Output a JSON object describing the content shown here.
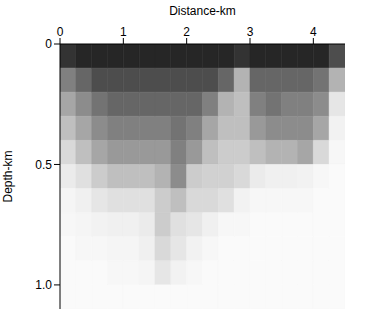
{
  "chart_data": {
    "type": "heatmap",
    "x_label": "Distance-km",
    "y_label": "Depth-km",
    "xlim": [
      0,
      4.5
    ],
    "ylim": [
      0,
      1.1
    ],
    "xticks": [
      0,
      1,
      2,
      3,
      4
    ],
    "yticks": [
      0,
      0.5,
      {
        "value": 1,
        "label": "1.0"
      }
    ],
    "grid": false,
    "x_bins": [
      0,
      0.25,
      0.5,
      0.75,
      1,
      1.25,
      1.5,
      1.75,
      2,
      2.25,
      2.5,
      2.75,
      3,
      3.25,
      3.5,
      3.75,
      4,
      4.25,
      4.5
    ],
    "y_bins": [
      0,
      0.1,
      0.2,
      0.3,
      0.4,
      0.5,
      0.6,
      0.7,
      0.8,
      0.9,
      1,
      1.1
    ],
    "cells": [
      [
        0.8,
        0.85,
        0.85,
        0.85,
        0.85,
        0.85,
        0.85,
        0.85,
        0.85,
        0.85,
        0.85,
        0.8,
        0.85,
        0.85,
        0.85,
        0.85,
        0.85,
        0.7
      ],
      [
        0.5,
        0.6,
        0.7,
        0.7,
        0.7,
        0.7,
        0.7,
        0.7,
        0.7,
        0.7,
        0.6,
        0.3,
        0.6,
        0.6,
        0.6,
        0.6,
        0.55,
        0.3
      ],
      [
        0.35,
        0.45,
        0.55,
        0.6,
        0.6,
        0.6,
        0.6,
        0.6,
        0.6,
        0.5,
        0.3,
        0.25,
        0.5,
        0.55,
        0.5,
        0.5,
        0.45,
        0.1
      ],
      [
        0.25,
        0.35,
        0.45,
        0.5,
        0.5,
        0.5,
        0.5,
        0.55,
        0.5,
        0.35,
        0.25,
        0.25,
        0.4,
        0.45,
        0.45,
        0.45,
        0.35,
        0.05
      ],
      [
        0.15,
        0.25,
        0.35,
        0.4,
        0.4,
        0.4,
        0.4,
        0.5,
        0.4,
        0.25,
        0.2,
        0.2,
        0.25,
        0.3,
        0.3,
        0.35,
        0.15,
        0.03
      ],
      [
        0.08,
        0.12,
        0.2,
        0.25,
        0.25,
        0.25,
        0.3,
        0.45,
        0.2,
        0.18,
        0.18,
        0.15,
        0.08,
        0.06,
        0.06,
        0.05,
        0.03,
        0.02
      ],
      [
        0.04,
        0.06,
        0.1,
        0.12,
        0.12,
        0.12,
        0.2,
        0.25,
        0.15,
        0.15,
        0.12,
        0.05,
        0.03,
        0.03,
        0.03,
        0.03,
        0.02,
        0.02
      ],
      [
        0.03,
        0.04,
        0.05,
        0.06,
        0.06,
        0.08,
        0.2,
        0.12,
        0.1,
        0.06,
        0.03,
        0.03,
        0.02,
        0.02,
        0.02,
        0.02,
        0.02,
        0.02
      ],
      [
        0.02,
        0.03,
        0.03,
        0.04,
        0.04,
        0.06,
        0.15,
        0.1,
        0.05,
        0.03,
        0.02,
        0.02,
        0.02,
        0.02,
        0.02,
        0.02,
        0.02,
        0.02
      ],
      [
        0.02,
        0.02,
        0.02,
        0.03,
        0.03,
        0.04,
        0.1,
        0.05,
        0.03,
        0.02,
        0.02,
        0.02,
        0.02,
        0.02,
        0.02,
        0.02,
        0.02,
        0.02
      ],
      [
        0.02,
        0.02,
        0.02,
        0.02,
        0.02,
        0.02,
        0.02,
        0.02,
        0.02,
        0.02,
        0.02,
        0.02,
        0.02,
        0.02,
        0.02,
        0.02,
        0.02,
        0.02
      ]
    ]
  }
}
